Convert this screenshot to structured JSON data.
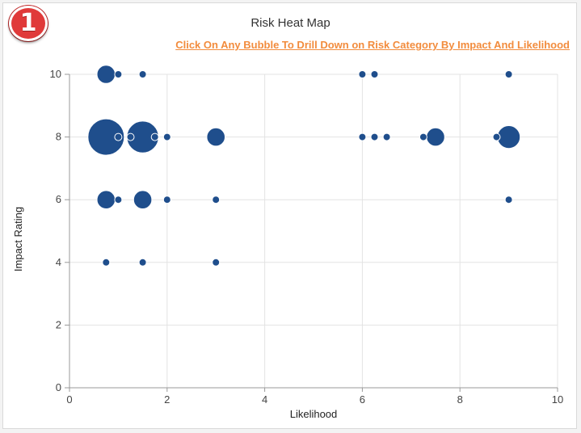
{
  "badge": {
    "number": "1"
  },
  "header": {
    "title": "Risk Heat Map",
    "drill_link": "Click On Any Bubble To Drill Down on Risk Category By Impact And Likelihood"
  },
  "colors": {
    "bubble": "#1f4e8c",
    "badge": "#e03a3a",
    "link": "#f28c3d",
    "grid": "#e3e3e3"
  },
  "chart_data": {
    "type": "scatter",
    "title": "Risk Heat Map",
    "xlabel": "Likelihood",
    "ylabel": "Impact Rating",
    "xlim": [
      0,
      10
    ],
    "ylim": [
      0,
      10
    ],
    "xticks": [
      "0",
      "2",
      "4",
      "6",
      "8",
      "10"
    ],
    "yticks": [
      "0",
      "2",
      "4",
      "6",
      "8",
      "10"
    ],
    "grid": true,
    "legend": "none",
    "series": [
      {
        "points": [
          {
            "x": 0.75,
            "y": 10,
            "size": 2
          },
          {
            "x": 1.0,
            "y": 10,
            "size": 1
          },
          {
            "x": 1.5,
            "y": 10,
            "size": 1
          },
          {
            "x": 6.0,
            "y": 10,
            "size": 1
          },
          {
            "x": 6.25,
            "y": 10,
            "size": 1
          },
          {
            "x": 9.0,
            "y": 10,
            "size": 1
          },
          {
            "x": 0.75,
            "y": 8,
            "size": 8
          },
          {
            "x": 1.0,
            "y": 8,
            "size": 1
          },
          {
            "x": 1.25,
            "y": 8,
            "size": 1
          },
          {
            "x": 1.5,
            "y": 8,
            "size": 6
          },
          {
            "x": 1.75,
            "y": 8,
            "size": 1
          },
          {
            "x": 2.0,
            "y": 8,
            "size": 1
          },
          {
            "x": 3.0,
            "y": 8,
            "size": 2
          },
          {
            "x": 6.0,
            "y": 8,
            "size": 1
          },
          {
            "x": 6.25,
            "y": 8,
            "size": 1
          },
          {
            "x": 6.5,
            "y": 8,
            "size": 1
          },
          {
            "x": 7.25,
            "y": 8,
            "size": 1
          },
          {
            "x": 7.5,
            "y": 8,
            "size": 2
          },
          {
            "x": 8.75,
            "y": 8,
            "size": 1
          },
          {
            "x": 9.0,
            "y": 8,
            "size": 3
          },
          {
            "x": 0.75,
            "y": 6,
            "size": 2
          },
          {
            "x": 1.0,
            "y": 6,
            "size": 1
          },
          {
            "x": 1.5,
            "y": 6,
            "size": 2
          },
          {
            "x": 2.0,
            "y": 6,
            "size": 1
          },
          {
            "x": 3.0,
            "y": 6,
            "size": 1
          },
          {
            "x": 9.0,
            "y": 6,
            "size": 1
          },
          {
            "x": 0.75,
            "y": 4,
            "size": 1
          },
          {
            "x": 1.5,
            "y": 4,
            "size": 1
          },
          {
            "x": 3.0,
            "y": 4,
            "size": 1
          }
        ]
      }
    ]
  }
}
